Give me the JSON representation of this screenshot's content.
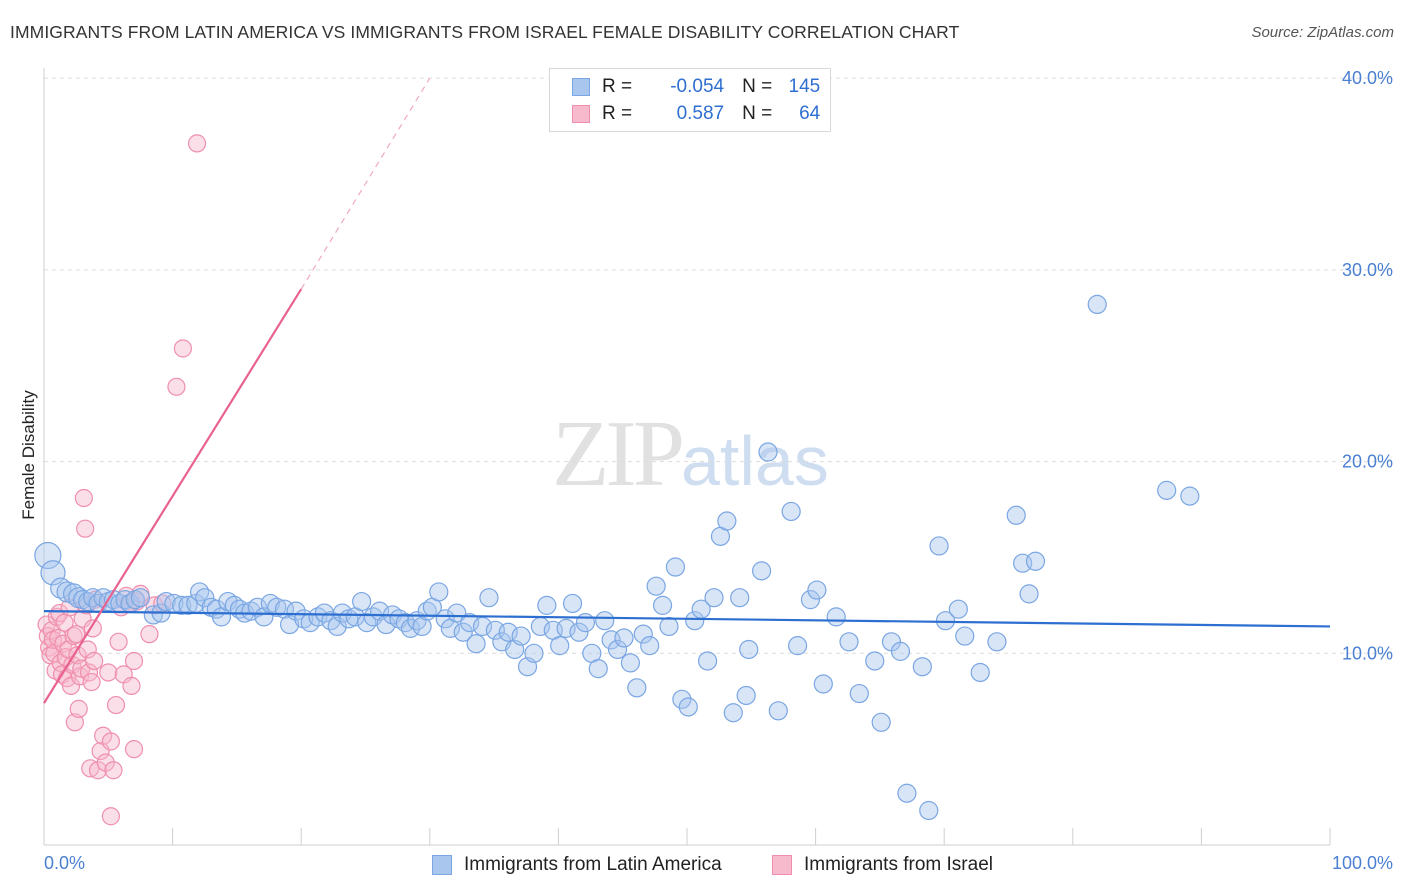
{
  "header": {
    "title": "IMMIGRANTS FROM LATIN AMERICA VS IMMIGRANTS FROM ISRAEL FEMALE DISABILITY CORRELATION CHART",
    "source": "Source: ZipAtlas.com"
  },
  "watermark": {
    "zip": "ZIP",
    "atlas": "atlas"
  },
  "legend": {
    "rows": [
      {
        "r_label": "R =",
        "r_value": "-0.054",
        "n_label": "N =",
        "n_value": "145"
      },
      {
        "r_label": "R =",
        "r_value": "0.587",
        "n_label": "N =",
        "n_value": "64"
      }
    ]
  },
  "bottom_legend": {
    "series1": "Immigrants from Latin America",
    "series2": "Immigrants from Israel"
  },
  "colors": {
    "blue_fill": "#a9c6ee",
    "blue_stroke": "#7aa6e3",
    "blue_line": "#2d6fd0",
    "pink_fill": "#f7b9cc",
    "pink_stroke": "#ef8fad",
    "pink_line": "#e9628f",
    "tick_color": "#4a7fd1"
  },
  "chart_data": {
    "type": "scatter",
    "title": "IMMIGRANTS FROM LATIN AMERICA VS IMMIGRANTS FROM ISRAEL FEMALE DISABILITY CORRELATION CHART",
    "ylabel": "Female Disability",
    "xlabel": "",
    "xlim": [
      0,
      100
    ],
    "ylim": [
      0,
      40
    ],
    "x_ticks": [
      "0.0%",
      "100.0%"
    ],
    "y_ticks": [
      {
        "value": 10,
        "label": "10.0%"
      },
      {
        "value": 20,
        "label": "20.0%"
      },
      {
        "value": 30,
        "label": "30.0%"
      },
      {
        "value": 40,
        "label": "40.0%"
      }
    ],
    "grid": "horizontal dashed",
    "legend_position": "top-center",
    "series": [
      {
        "name": "Immigrants from Latin America",
        "color": "blue",
        "R": -0.054,
        "N": 145,
        "trend": [
          [
            0,
            12.2
          ],
          [
            100,
            11.4
          ]
        ],
        "points": [
          [
            0.3,
            15.1
          ],
          [
            0.7,
            14.2
          ],
          [
            1.3,
            13.4
          ],
          [
            1.8,
            13.2
          ],
          [
            2.3,
            13.1
          ],
          [
            2.7,
            12.9
          ],
          [
            3.0,
            12.8
          ],
          [
            3.4,
            12.7
          ],
          [
            3.8,
            12.9
          ],
          [
            4.2,
            12.6
          ],
          [
            4.6,
            12.9
          ],
          [
            5.0,
            12.7
          ],
          [
            5.4,
            12.8
          ],
          [
            5.9,
            12.6
          ],
          [
            6.3,
            12.8
          ],
          [
            6.7,
            12.6
          ],
          [
            7.1,
            12.8
          ],
          [
            7.5,
            12.9
          ],
          [
            8.5,
            12.0
          ],
          [
            9.1,
            12.1
          ],
          [
            9.5,
            12.7
          ],
          [
            10.1,
            12.6
          ],
          [
            10.7,
            12.5
          ],
          [
            11.2,
            12.5
          ],
          [
            11.8,
            12.6
          ],
          [
            12.1,
            13.2
          ],
          [
            12.5,
            12.9
          ],
          [
            13.0,
            12.4
          ],
          [
            13.4,
            12.3
          ],
          [
            13.8,
            11.9
          ],
          [
            14.3,
            12.7
          ],
          [
            14.8,
            12.5
          ],
          [
            15.2,
            12.3
          ],
          [
            15.6,
            12.1
          ],
          [
            16.1,
            12.2
          ],
          [
            16.6,
            12.4
          ],
          [
            17.1,
            11.9
          ],
          [
            17.6,
            12.6
          ],
          [
            18.1,
            12.4
          ],
          [
            18.7,
            12.3
          ],
          [
            19.1,
            11.5
          ],
          [
            19.6,
            12.2
          ],
          [
            20.2,
            11.8
          ],
          [
            20.7,
            11.6
          ],
          [
            21.3,
            11.9
          ],
          [
            21.8,
            12.1
          ],
          [
            22.3,
            11.7
          ],
          [
            22.8,
            11.4
          ],
          [
            23.2,
            12.1
          ],
          [
            23.7,
            11.8
          ],
          [
            24.2,
            11.9
          ],
          [
            24.7,
            12.7
          ],
          [
            25.1,
            11.6
          ],
          [
            25.6,
            11.9
          ],
          [
            26.1,
            12.2
          ],
          [
            26.6,
            11.5
          ],
          [
            27.1,
            12.0
          ],
          [
            27.6,
            11.8
          ],
          [
            28.1,
            11.6
          ],
          [
            28.5,
            11.3
          ],
          [
            29.0,
            11.7
          ],
          [
            29.4,
            11.4
          ],
          [
            29.8,
            12.2
          ],
          [
            30.2,
            12.4
          ],
          [
            30.7,
            13.2
          ],
          [
            31.2,
            11.8
          ],
          [
            31.6,
            11.3
          ],
          [
            32.1,
            12.1
          ],
          [
            32.6,
            11.1
          ],
          [
            33.1,
            11.6
          ],
          [
            33.6,
            10.5
          ],
          [
            34.1,
            11.4
          ],
          [
            34.6,
            12.9
          ],
          [
            35.1,
            11.2
          ],
          [
            35.6,
            10.6
          ],
          [
            36.1,
            11.1
          ],
          [
            36.6,
            10.2
          ],
          [
            37.1,
            10.9
          ],
          [
            37.6,
            9.3
          ],
          [
            38.1,
            10.0
          ],
          [
            38.6,
            11.4
          ],
          [
            39.1,
            12.5
          ],
          [
            39.6,
            11.2
          ],
          [
            40.1,
            10.4
          ],
          [
            40.6,
            11.3
          ],
          [
            41.1,
            12.6
          ],
          [
            41.6,
            11.1
          ],
          [
            42.1,
            11.6
          ],
          [
            42.6,
            10.0
          ],
          [
            43.1,
            9.2
          ],
          [
            43.6,
            11.7
          ],
          [
            44.1,
            10.7
          ],
          [
            44.6,
            10.2
          ],
          [
            45.1,
            10.8
          ],
          [
            45.6,
            9.5
          ],
          [
            46.1,
            8.2
          ],
          [
            46.6,
            11.0
          ],
          [
            47.1,
            10.4
          ],
          [
            47.6,
            13.5
          ],
          [
            48.1,
            12.5
          ],
          [
            48.6,
            11.4
          ],
          [
            49.1,
            14.5
          ],
          [
            49.6,
            7.6
          ],
          [
            50.1,
            7.2
          ],
          [
            50.6,
            11.7
          ],
          [
            51.1,
            12.3
          ],
          [
            51.6,
            9.6
          ],
          [
            52.1,
            12.9
          ],
          [
            52.6,
            16.1
          ],
          [
            53.1,
            16.9
          ],
          [
            53.6,
            6.9
          ],
          [
            54.1,
            12.9
          ],
          [
            54.6,
            7.8
          ],
          [
            54.8,
            10.2
          ],
          [
            55.8,
            14.3
          ],
          [
            56.3,
            20.5
          ],
          [
            57.1,
            7.0
          ],
          [
            58.1,
            17.4
          ],
          [
            58.6,
            10.4
          ],
          [
            59.6,
            12.8
          ],
          [
            60.1,
            13.3
          ],
          [
            60.6,
            8.4
          ],
          [
            61.6,
            11.9
          ],
          [
            62.6,
            10.6
          ],
          [
            63.4,
            7.9
          ],
          [
            64.6,
            9.6
          ],
          [
            65.1,
            6.4
          ],
          [
            65.9,
            10.6
          ],
          [
            66.6,
            10.1
          ],
          [
            67.1,
            2.7
          ],
          [
            68.3,
            9.3
          ],
          [
            68.8,
            1.8
          ],
          [
            69.6,
            15.6
          ],
          [
            70.1,
            11.7
          ],
          [
            71.1,
            12.3
          ],
          [
            71.6,
            10.9
          ],
          [
            72.8,
            9.0
          ],
          [
            74.1,
            10.6
          ],
          [
            75.6,
            17.2
          ],
          [
            76.1,
            14.7
          ],
          [
            76.6,
            13.1
          ],
          [
            77.1,
            14.8
          ],
          [
            81.9,
            28.2
          ],
          [
            87.3,
            18.5
          ],
          [
            89.1,
            18.2
          ]
        ]
      },
      {
        "name": "Immigrants from Israel",
        "color": "pink",
        "R": 0.587,
        "N": 64,
        "trend": [
          [
            0,
            7.4
          ],
          [
            20,
            29.0
          ]
        ],
        "trend_dashed": [
          [
            20,
            29.0
          ],
          [
            30,
            40.0
          ]
        ],
        "points": [
          [
            0.2,
            11.5
          ],
          [
            0.3,
            10.9
          ],
          [
            0.4,
            10.3
          ],
          [
            0.5,
            9.9
          ],
          [
            0.6,
            11.2
          ],
          [
            0.7,
            10.7
          ],
          [
            0.8,
            10.0
          ],
          [
            0.9,
            9.1
          ],
          [
            1.0,
            11.9
          ],
          [
            1.1,
            10.8
          ],
          [
            1.2,
            12.1
          ],
          [
            1.3,
            9.5
          ],
          [
            1.4,
            8.9
          ],
          [
            1.5,
            10.5
          ],
          [
            1.6,
            11.6
          ],
          [
            1.7,
            9.8
          ],
          [
            1.8,
            8.7
          ],
          [
            1.9,
            10.2
          ],
          [
            2.0,
            12.4
          ],
          [
            2.1,
            8.3
          ],
          [
            2.2,
            9.4
          ],
          [
            2.3,
            10.9
          ],
          [
            2.4,
            6.4
          ],
          [
            2.5,
            11.0
          ],
          [
            2.6,
            9.9
          ],
          [
            2.7,
            7.1
          ],
          [
            2.8,
            8.8
          ],
          [
            2.9,
            9.2
          ],
          [
            3.0,
            11.8
          ],
          [
            3.1,
            18.1
          ],
          [
            3.2,
            16.5
          ],
          [
            3.3,
            12.5
          ],
          [
            3.4,
            10.2
          ],
          [
            3.5,
            9.0
          ],
          [
            3.6,
            4.0
          ],
          [
            3.7,
            8.5
          ],
          [
            3.8,
            11.3
          ],
          [
            3.9,
            9.6
          ],
          [
            4.0,
            12.8
          ],
          [
            4.2,
            3.9
          ],
          [
            4.4,
            4.9
          ],
          [
            4.6,
            5.7
          ],
          [
            4.8,
            4.3
          ],
          [
            5.0,
            9.0
          ],
          [
            5.2,
            5.4
          ],
          [
            5.4,
            3.9
          ],
          [
            5.6,
            7.3
          ],
          [
            5.8,
            10.6
          ],
          [
            6.0,
            12.4
          ],
          [
            6.2,
            8.9
          ],
          [
            6.4,
            13.0
          ],
          [
            6.6,
            12.6
          ],
          [
            6.8,
            8.3
          ],
          [
            7.0,
            9.6
          ],
          [
            7.2,
            12.7
          ],
          [
            7.5,
            13.1
          ],
          [
            8.2,
            11.0
          ],
          [
            8.6,
            12.5
          ],
          [
            9.2,
            12.6
          ],
          [
            10.3,
            23.9
          ],
          [
            10.8,
            25.9
          ],
          [
            11.9,
            36.6
          ],
          [
            7.0,
            5.0
          ],
          [
            5.2,
            1.5
          ]
        ]
      }
    ]
  }
}
